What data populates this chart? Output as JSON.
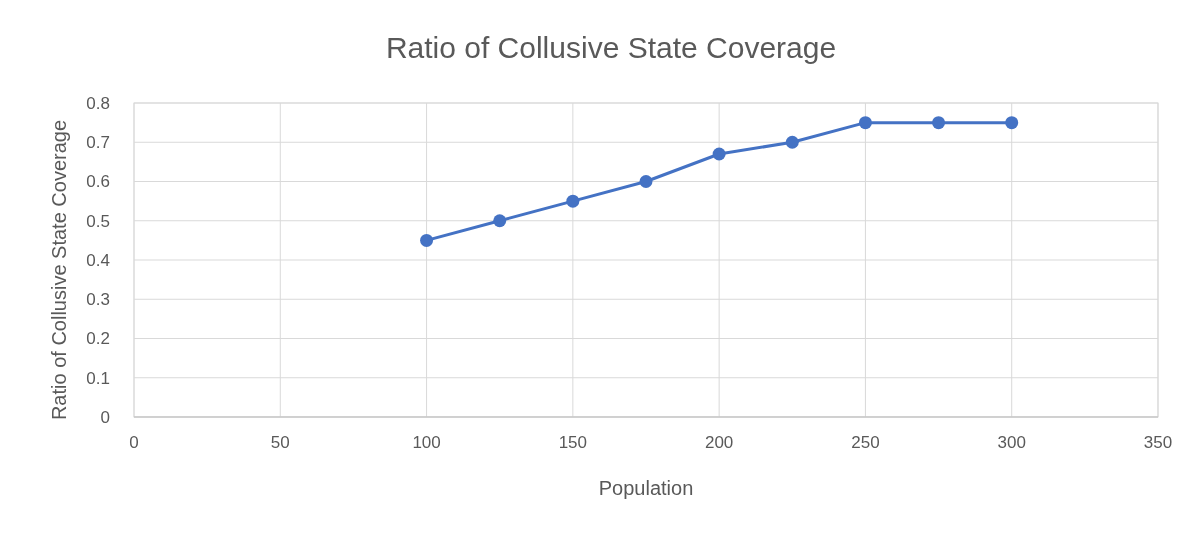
{
  "chart_data": {
    "type": "line",
    "title": "Ratio of Collusive State Coverage",
    "xlabel": "Population",
    "ylabel": "Ratio of Collusive State Coverage",
    "x": [
      100,
      125,
      150,
      175,
      200,
      225,
      250,
      275,
      300
    ],
    "series": [
      {
        "color": "#4472c4",
        "values": [
          0.45,
          0.5,
          0.55,
          0.6,
          0.67,
          0.7,
          0.75,
          0.75,
          0.75
        ]
      }
    ],
    "xlim": [
      0,
      350
    ],
    "xticks": [
      0,
      50,
      100,
      150,
      200,
      250,
      300,
      350
    ],
    "ylim": [
      0,
      0.8
    ],
    "yticks": [
      0,
      0.1,
      0.2,
      0.3,
      0.4,
      0.5,
      0.6,
      0.7,
      0.8
    ],
    "grid": true,
    "marker": "circle",
    "line_style": "solid"
  }
}
